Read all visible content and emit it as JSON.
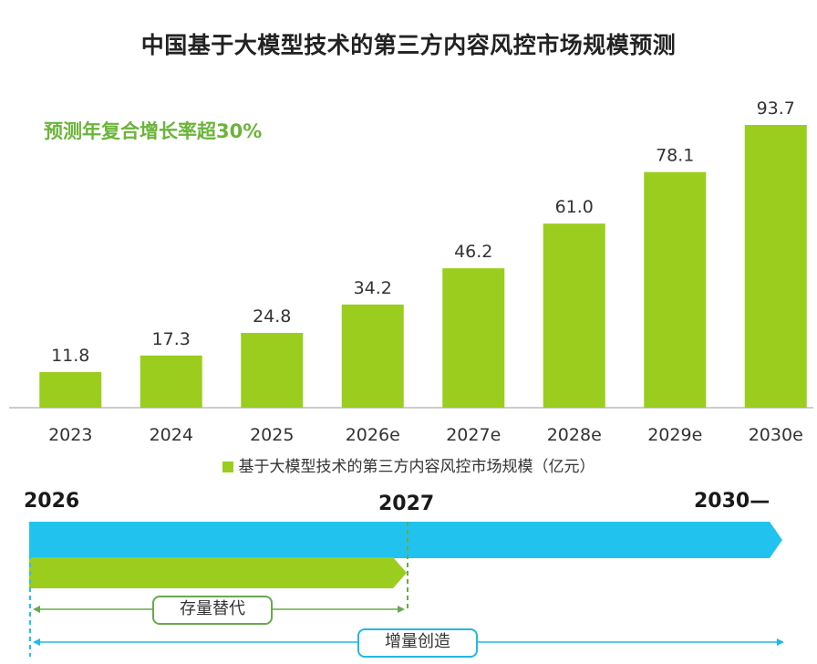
{
  "title": "中国基于大模型技术的第三方内容风控市场规模预测",
  "cagr_note": "预测年复合增长率超30%",
  "legend": "基于大模型技术的第三方内容风控市场规模（亿元）",
  "colors": {
    "bar": "#9acd1e",
    "blue_arrow": "#21c3ee",
    "green_arrow": "#9acd1e",
    "cagr_text": "#6bb43a"
  },
  "chart_data": {
    "type": "bar",
    "title": "中国基于大模型技术的第三方内容风控市场规模预测",
    "categories": [
      "2023",
      "2024",
      "2025",
      "2026e",
      "2027e",
      "2028e",
      "2029e",
      "2030e"
    ],
    "series": [
      {
        "name": "基于大模型技术的第三方内容风控市场规模（亿元）",
        "values": [
          11.8,
          17.3,
          24.8,
          34.2,
          46.2,
          61.0,
          78.1,
          93.7
        ]
      }
    ],
    "ylim": [
      0,
      100
    ],
    "grid": false,
    "legend_position": "bottom",
    "annotation": "预测年复合增长率超30%"
  },
  "timeline": {
    "start_label": "2026",
    "mid_label": "2027",
    "end_label": "2030—",
    "stock_label": "存量替代",
    "increment_label": "增量创造"
  }
}
